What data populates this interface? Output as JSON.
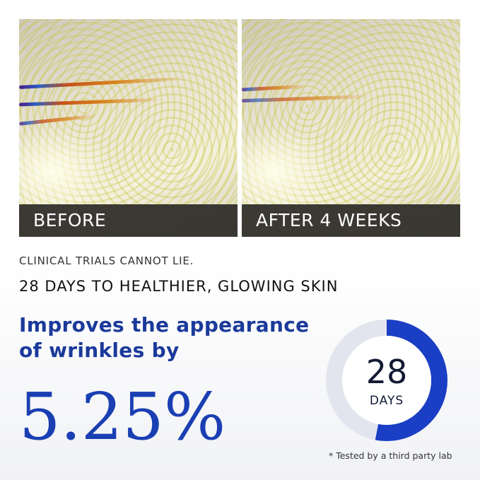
{
  "images": {
    "before_label": "BEFORE",
    "after_label": "AFTER 4 WEEKS"
  },
  "tagline": "CLINICAL TRIALS CANNOT LIE.",
  "subheading": "28 DAYS TO HEALTHIER, GLOWING SKIN",
  "headline_line1": "Improves the appearance",
  "headline_line2": "of wrinkles by",
  "stat_value": "5.25%",
  "donut": {
    "number": "28",
    "unit": "DAYS",
    "fill_fraction": 0.53,
    "fill_color": "#1a3fc4",
    "track_color": "#e3e5ee"
  },
  "footnote": "* Tested by a third party lab"
}
